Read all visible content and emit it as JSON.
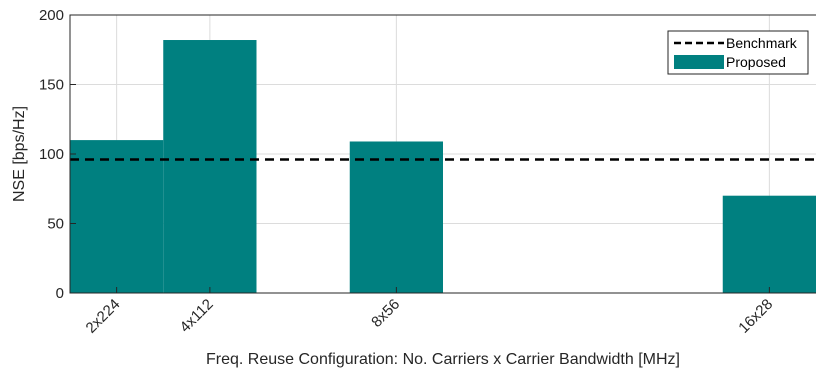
{
  "chart_data": {
    "type": "bar",
    "x_categories": [
      "2x224",
      "4x112",
      "8x56",
      "16x28"
    ],
    "x_positions": [
      1,
      2,
      4,
      8
    ],
    "bars": [
      {
        "label": "2x224",
        "x": 1,
        "value": 110
      },
      {
        "label": "4x112",
        "x": 2,
        "value": 182
      },
      {
        "label": "8x56",
        "x": 4,
        "value": 109
      },
      {
        "label": "16x28",
        "x": 8,
        "value": 70
      }
    ],
    "benchmark": 96,
    "xlim": [
      0.5,
      8.5
    ],
    "ylim": [
      0,
      200
    ],
    "yticks": [
      0,
      50,
      100,
      150,
      200
    ],
    "xlabel": "Freq. Reuse Configuration: No. Carriers x Carrier Bandwidth [MHz]",
    "ylabel": "NSE [bps/Hz]",
    "legend": {
      "position": "top-right",
      "entries": [
        "Benchmark",
        "Proposed"
      ]
    },
    "grid": true,
    "colors": {
      "proposed": "#008080",
      "benchmark": "#000000"
    }
  }
}
